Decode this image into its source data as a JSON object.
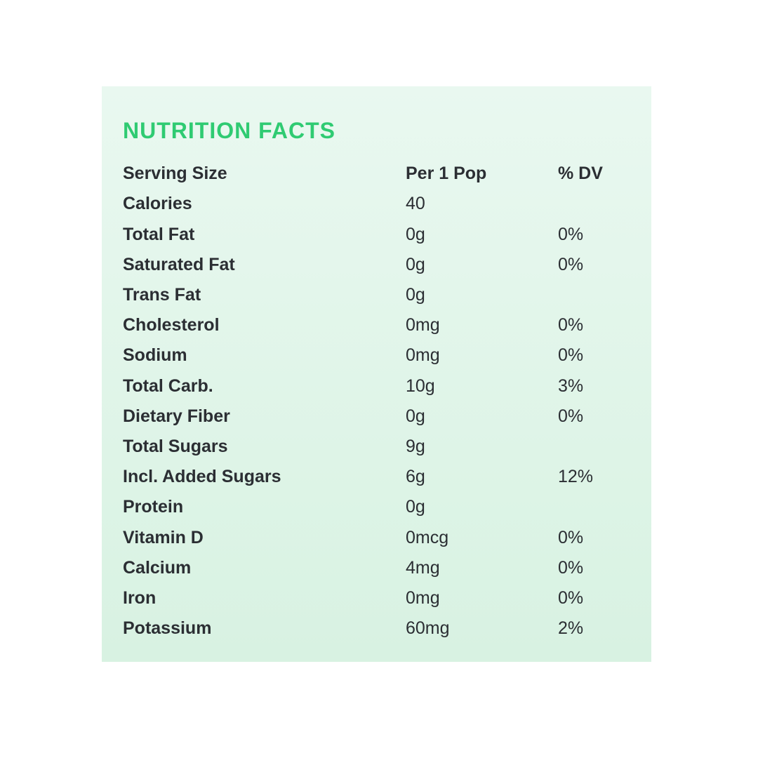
{
  "panel": {
    "title": "NUTRITION FACTS",
    "header": {
      "label": "Serving Size",
      "value": "Per 1 Pop",
      "dv": "% DV"
    },
    "rows": [
      {
        "label": "Calories",
        "value": "40",
        "dv": ""
      },
      {
        "label": "Total Fat",
        "value": "0g",
        "dv": "0%"
      },
      {
        "label": "Saturated Fat",
        "value": "0g",
        "dv": "0%"
      },
      {
        "label": "Trans Fat",
        "value": "0g",
        "dv": ""
      },
      {
        "label": "Cholesterol",
        "value": "0mg",
        "dv": "0%"
      },
      {
        "label": "Sodium",
        "value": "0mg",
        "dv": "0%"
      },
      {
        "label": "Total Carb.",
        "value": "10g",
        "dv": "3%"
      },
      {
        "label": "Dietary Fiber",
        "value": "0g",
        "dv": "0%"
      },
      {
        "label": "Total Sugars",
        "value": "9g",
        "dv": ""
      },
      {
        "label": "Incl. Added Sugars",
        "value": "6g",
        "dv": "12%"
      },
      {
        "label": "Protein",
        "value": "0g",
        "dv": ""
      },
      {
        "label": "Vitamin D",
        "value": "0mcg",
        "dv": "0%"
      },
      {
        "label": "Calcium",
        "value": "4mg",
        "dv": "0%"
      },
      {
        "label": "Iron",
        "value": "0mg",
        "dv": "0%"
      },
      {
        "label": "Potassium",
        "value": "60mg",
        "dv": "2%"
      }
    ],
    "colors": {
      "title_green": "#2fcb72",
      "text_dark": "#2b2e33",
      "panel_gradient_top": "#e9f8f0",
      "panel_gradient_bottom": "#d8f2e2",
      "page_background": "#ffffff"
    }
  }
}
